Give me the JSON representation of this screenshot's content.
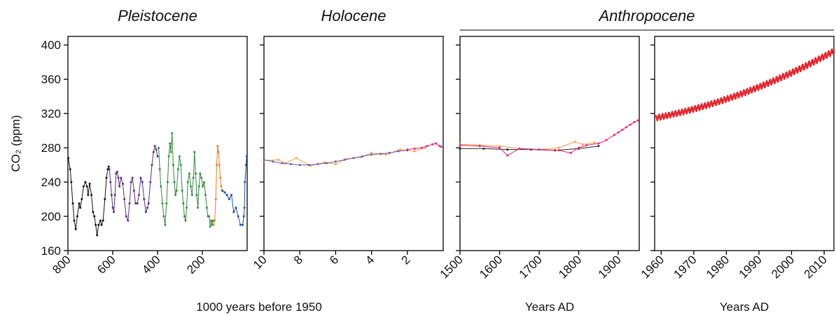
{
  "chart_data": [
    {
      "type": "line",
      "title": "Pleistocene",
      "y_label": "CO₂ (ppm)",
      "x_label": "1000 years before 1950",
      "xlim": [
        800,
        0
      ],
      "xticks": [
        800,
        600,
        400,
        200
      ],
      "ylim": [
        160,
        410
      ],
      "yticks": [
        160,
        200,
        240,
        280,
        320,
        360,
        400
      ],
      "ytick_labels": true,
      "markers": true,
      "series": [
        {
          "color": "#111111",
          "x": [
            798,
            790,
            785,
            778,
            772,
            765,
            758,
            750,
            745,
            738,
            730,
            722,
            715,
            710,
            703,
            695,
            688,
            682,
            676,
            670,
            663,
            655,
            650,
            643,
            635,
            628,
            622,
            618
          ],
          "values": [
            268,
            255,
            240,
            215,
            195,
            185,
            200,
            215,
            210,
            220,
            235,
            240,
            235,
            225,
            238,
            225,
            205,
            200,
            190,
            178,
            190,
            195,
            190,
            195,
            220,
            245,
            255,
            258
          ]
        },
        {
          "color": "#5b2a86",
          "x": [
            615,
            610,
            605,
            600,
            595,
            590,
            585,
            580,
            575,
            570,
            563,
            555,
            548,
            540,
            532,
            525,
            518,
            512,
            505,
            498,
            490,
            483,
            475,
            468,
            460,
            452,
            445,
            440,
            432,
            425,
            418,
            412,
            406,
            400
          ],
          "values": [
            255,
            240,
            225,
            210,
            205,
            225,
            250,
            252,
            245,
            235,
            245,
            238,
            220,
            200,
            195,
            215,
            240,
            245,
            230,
            215,
            215,
            225,
            245,
            240,
            220,
            205,
            210,
            215,
            240,
            260,
            275,
            282,
            278,
            270
          ]
        },
        {
          "color": "#2e8b3a",
          "x": [
            395,
            390,
            385,
            378,
            372,
            366,
            360,
            355,
            350,
            345,
            340,
            335,
            330,
            325,
            320,
            315,
            308,
            302,
            296,
            290,
            285,
            280,
            275,
            270,
            265,
            258,
            252,
            246,
            240,
            235,
            230,
            225,
            220,
            215,
            210,
            204,
            198,
            192,
            186,
            180,
            175,
            170,
            165,
            160,
            156,
            152
          ],
          "values": [
            280,
            255,
            235,
            215,
            200,
            190,
            215,
            240,
            270,
            285,
            275,
            297,
            260,
            240,
            225,
            230,
            255,
            270,
            260,
            230,
            215,
            200,
            195,
            210,
            240,
            250,
            235,
            225,
            245,
            275,
            250,
            225,
            210,
            235,
            250,
            245,
            235,
            240,
            225,
            210,
            200,
            200,
            188,
            195,
            190,
            195
          ]
        },
        {
          "color": "#f47920",
          "x": [
            150,
            145,
            140,
            136,
            132,
            128,
            124,
            120,
            116,
            112
          ],
          "values": [
            190,
            195,
            220,
            260,
            282,
            275,
            260,
            245,
            235,
            230
          ]
        },
        {
          "color": "#1f4ea3",
          "x": [
            110,
            100,
            90,
            80,
            70,
            60,
            50,
            40,
            30,
            20,
            15,
            12,
            10,
            5,
            2
          ],
          "values": [
            230,
            228,
            225,
            220,
            225,
            205,
            210,
            200,
            190,
            190,
            200,
            210,
            240,
            260,
            270
          ]
        }
      ]
    },
    {
      "type": "line",
      "title": "Holocene",
      "xlim": [
        10,
        0
      ],
      "xticks": [
        10,
        8,
        6,
        4,
        2
      ],
      "ylim": [
        160,
        410
      ],
      "yticks": [
        160,
        200,
        240,
        280,
        320,
        360,
        400
      ],
      "ytick_labels": false,
      "markers": true,
      "series": [
        {
          "color": "#f4a040",
          "x": [
            10,
            9.2,
            8.8,
            8.2,
            7.4,
            6.6,
            6.0,
            5.4,
            4.6,
            4.0,
            3.2,
            2.4,
            1.6,
            1.0
          ],
          "values": [
            265,
            266,
            262,
            268,
            259,
            263,
            261,
            267,
            269,
            274,
            272,
            278,
            276,
            280
          ]
        },
        {
          "color": "#6a55a8",
          "x": [
            10,
            9.5,
            9,
            8.5,
            8,
            7.5,
            7,
            6.5,
            6,
            5.5,
            5,
            4.5,
            4,
            3.5,
            3,
            2.5,
            2
          ],
          "values": [
            266,
            264,
            262,
            261,
            260,
            260,
            261,
            262,
            264,
            266,
            268,
            270,
            272,
            273,
            274,
            276,
            277
          ]
        },
        {
          "color": "#e8207a",
          "x": [
            2,
            1.6,
            1.2,
            0.9,
            0.6,
            0.4,
            0.2,
            0.1
          ],
          "values": [
            278,
            279,
            280,
            282,
            284,
            285,
            282,
            281
          ]
        }
      ]
    },
    {
      "type": "line",
      "title": "Anthropocene",
      "x_label": "Years AD",
      "xlim": [
        1500,
        1953
      ],
      "xticks": [
        1500,
        1600,
        1700,
        1800,
        1900
      ],
      "ylim": [
        160,
        410
      ],
      "yticks": [
        160,
        200,
        240,
        280,
        320,
        360,
        400
      ],
      "ytick_labels": false,
      "markers": true,
      "series": [
        {
          "color": "#222222",
          "x": [
            1500,
            1560,
            1620,
            1680,
            1740,
            1800,
            1850
          ],
          "values": [
            279,
            279,
            278,
            278,
            277,
            279,
            282
          ]
        },
        {
          "color": "#f4a040",
          "x": [
            1500,
            1550,
            1600,
            1650,
            1700,
            1750,
            1790,
            1810,
            1840
          ],
          "values": [
            284,
            283,
            282,
            279,
            278,
            280,
            287,
            284,
            286
          ]
        },
        {
          "color": "#e8207a",
          "x": [
            1500,
            1550,
            1600,
            1620,
            1650,
            1700,
            1750,
            1780,
            1800,
            1820,
            1850,
            1870,
            1890,
            1900,
            1910,
            1920,
            1930,
            1940,
            1950
          ],
          "values": [
            283,
            282,
            280,
            271,
            279,
            278,
            277,
            274,
            280,
            283,
            285,
            289,
            295,
            298,
            301,
            304,
            307,
            310,
            312
          ]
        }
      ]
    },
    {
      "type": "line",
      "x_label": "Years AD",
      "xlim": [
        1958,
        2013
      ],
      "xticks": [
        1960,
        1970,
        1980,
        1990,
        2000,
        2010
      ],
      "ylim": [
        160,
        410
      ],
      "yticks": [
        160,
        200,
        240,
        280,
        320,
        360,
        400
      ],
      "ytick_labels": false,
      "markers": false,
      "series": [
        {
          "color": "#e8242b",
          "x": [
            1958.4,
            1958.8,
            1959.4,
            1959.8,
            1960.4,
            1960.8,
            1961.4,
            1961.8,
            1962.4,
            1962.8,
            1963.4,
            1963.8,
            1964.4,
            1964.8,
            1965.4,
            1965.8,
            1966.4,
            1966.8,
            1967.4,
            1967.8,
            1968.4,
            1968.8,
            1969.4,
            1969.8,
            1970.4,
            1970.8,
            1971.4,
            1971.8,
            1972.4,
            1972.8,
            1973.4,
            1973.8,
            1974.4,
            1974.8,
            1975.4,
            1975.8,
            1976.4,
            1976.8,
            1977.4,
            1977.8,
            1978.4,
            1978.8,
            1979.4,
            1979.8,
            1980.4,
            1980.8,
            1981.4,
            1981.8,
            1982.4,
            1982.8,
            1983.4,
            1983.8,
            1984.4,
            1984.8,
            1985.4,
            1985.8,
            1986.4,
            1986.8,
            1987.4,
            1987.8,
            1988.4,
            1988.8,
            1989.4,
            1989.8,
            1990.4,
            1990.8,
            1991.4,
            1991.8,
            1992.4,
            1992.8,
            1993.4,
            1993.8,
            1994.4,
            1994.8,
            1995.4,
            1995.8,
            1996.4,
            1996.8,
            1997.4,
            1997.8,
            1998.4,
            1998.8,
            1999.4,
            1999.8,
            2000.4,
            2000.8,
            2001.4,
            2001.8,
            2002.4,
            2002.8,
            2003.4,
            2003.8,
            2004.4,
            2004.8,
            2005.4,
            2005.8,
            2006.4,
            2006.8,
            2007.4,
            2007.8,
            2008.4,
            2008.8,
            2009.4,
            2009.8,
            2010.4,
            2010.8,
            2011.4,
            2011.8,
            2012.4,
            2012.8
          ],
          "values": [
            318.0,
            312.0,
            318.8,
            312.8,
            319.6,
            313.6,
            320.4,
            314.4,
            321.2,
            315.2,
            322.1,
            316.1,
            323.0,
            317.0,
            323.9,
            317.9,
            324.8,
            318.8,
            325.8,
            319.8,
            326.8,
            320.8,
            327.8,
            321.8,
            328.8,
            322.8,
            329.9,
            323.9,
            331.0,
            325.0,
            332.1,
            326.1,
            333.2,
            327.2,
            334.4,
            328.4,
            335.6,
            329.6,
            336.8,
            330.8,
            338.0,
            332.0,
            339.3,
            333.3,
            340.6,
            334.6,
            341.9,
            335.9,
            343.2,
            337.2,
            344.6,
            338.6,
            346.0,
            340.0,
            347.4,
            341.4,
            348.8,
            342.8,
            350.3,
            344.3,
            351.8,
            345.8,
            353.3,
            347.3,
            354.8,
            348.8,
            356.4,
            350.4,
            358.0,
            352.0,
            359.6,
            353.6,
            361.2,
            355.2,
            362.9,
            356.9,
            364.6,
            358.6,
            366.3,
            360.3,
            368.0,
            362.0,
            369.8,
            363.8,
            371.6,
            365.6,
            373.4,
            367.4,
            375.2,
            369.2,
            377.1,
            371.1,
            379.0,
            373.0,
            380.9,
            374.9,
            382.8,
            376.8,
            384.8,
            378.8,
            386.8,
            380.8,
            388.8,
            382.8,
            390.8,
            384.8,
            392.9,
            386.9,
            395.0,
            389.0
          ]
        }
      ]
    }
  ]
}
